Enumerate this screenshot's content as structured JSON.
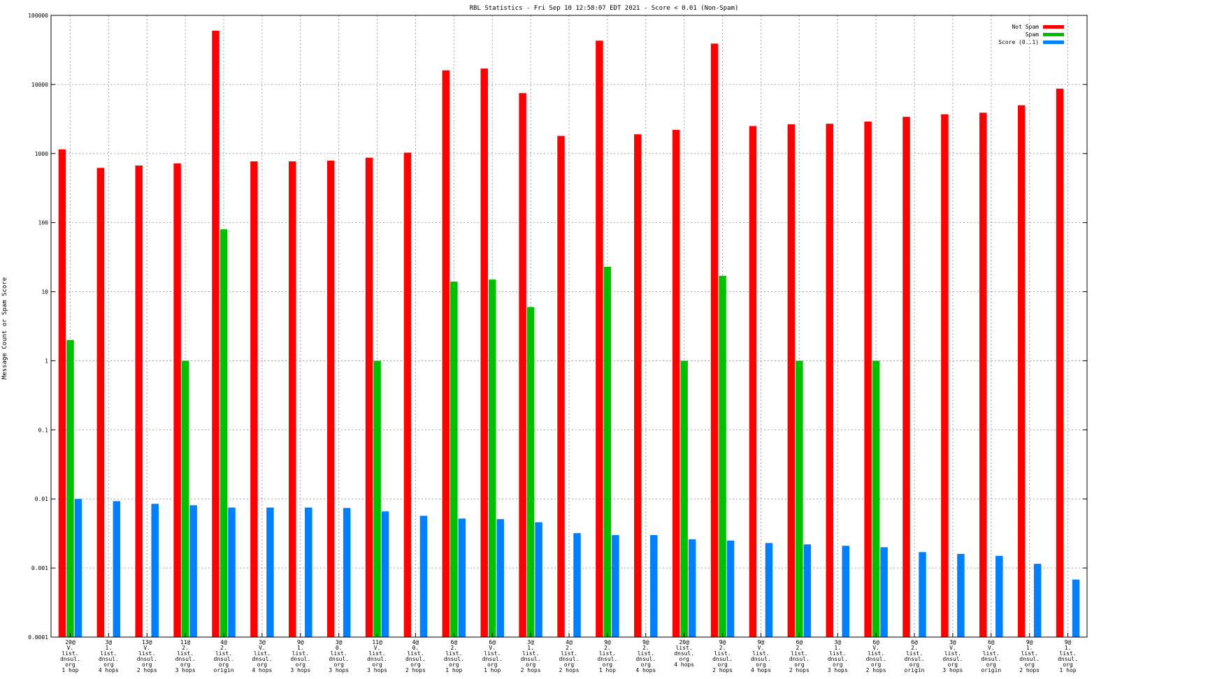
{
  "chart_data": {
    "type": "bar",
    "title": "RBL Statistics - Fri Sep 10 12:58:07 EDT 2021 - Score < 0.01 (Non-Spam)",
    "xlabel": "",
    "ylabel": "Message Count or Spam Score",
    "yscale": "log",
    "ylim": [
      0.0001,
      100000
    ],
    "yticks": [
      "0.0001",
      "0.001",
      "0.01",
      "0.1",
      "1",
      "10",
      "100",
      "1000",
      "10000",
      "100000"
    ],
    "grid": true,
    "legend_position": "top-right",
    "categories": [
      [
        "20@",
        "V.",
        "list.",
        "dnsul.",
        "org",
        "1 hop"
      ],
      [
        "3@",
        "1.",
        "list.",
        "dnsul.",
        "org",
        "4 hops"
      ],
      [
        "13@",
        "V.",
        "list.",
        "dnsul.",
        "org",
        "2 hops"
      ],
      [
        "11@",
        "2.",
        "list.",
        "dnsul.",
        "org",
        "3 hops"
      ],
      [
        "4@",
        "2.",
        "list.",
        "dnsul.",
        "org",
        "origin"
      ],
      [
        "3@",
        "V.",
        "list.",
        "dnsul.",
        "org",
        "4 hops"
      ],
      [
        "9@",
        "1.",
        "list.",
        "dnsul.",
        "org",
        "3 hops"
      ],
      [
        "3@",
        "0.",
        "list.",
        "dnsul.",
        "org",
        "3 hops"
      ],
      [
        "11@",
        "V.",
        "list.",
        "dnsul.",
        "org",
        "3 hops"
      ],
      [
        "4@",
        "0.",
        "list.",
        "dnsul.",
        "org",
        "2 hops"
      ],
      [
        "6@",
        "2.",
        "list.",
        "dnsul.",
        "org",
        "1 hop"
      ],
      [
        "6@",
        "V.",
        "list.",
        "dnsul.",
        "org",
        "1 hop"
      ],
      [
        "3@",
        "1.",
        "list.",
        "dnsul.",
        "org",
        "2 hops"
      ],
      [
        "4@",
        "2.",
        "list.",
        "dnsul.",
        "org",
        "2 hops"
      ],
      [
        "9@",
        "2.",
        "list.",
        "dnsul.",
        "org",
        "1 hop"
      ],
      [
        "9@",
        "2.",
        "list.",
        "dnsul.",
        "org",
        "4 hops"
      ],
      [
        "20@",
        "list.",
        "dnsul.",
        "org",
        "4 hops"
      ],
      [
        "9@",
        "2.",
        "list.",
        "dnsul.",
        "org",
        "2 hops"
      ],
      [
        "9@",
        "V.",
        "list.",
        "dnsul.",
        "org",
        "4 hops"
      ],
      [
        "6@",
        "2.",
        "list.",
        "dnsul.",
        "org",
        "2 hops"
      ],
      [
        "3@",
        "1.",
        "list.",
        "dnsul.",
        "org",
        "3 hops"
      ],
      [
        "6@",
        "V.",
        "list.",
        "dnsul.",
        "org",
        "2 hops"
      ],
      [
        "6@",
        "2.",
        "list.",
        "dnsul.",
        "org",
        "origin"
      ],
      [
        "3@",
        "V.",
        "list.",
        "dnsul.",
        "org",
        "3 hops"
      ],
      [
        "6@",
        "V.",
        "list.",
        "dnsul.",
        "org",
        "origin"
      ],
      [
        "9@",
        "1.",
        "list.",
        "dnsul.",
        "org",
        "2 hops"
      ],
      [
        "9@",
        "1.",
        "list.",
        "dnsul.",
        "org",
        "1 hop"
      ]
    ],
    "series": [
      {
        "name": "Not Spam",
        "color": "#ff0000",
        "values": [
          1150,
          620,
          670,
          720,
          60000,
          770,
          770,
          790,
          870,
          1030,
          16000,
          17000,
          7500,
          1800,
          43000,
          1900,
          2200,
          39000,
          2500,
          2650,
          2700,
          2900,
          3400,
          3700,
          3900,
          5000,
          8700
        ]
      },
      {
        "name": "Spam",
        "color": "#00c000",
        "values": [
          2,
          null,
          null,
          1,
          80,
          null,
          null,
          null,
          1,
          null,
          14,
          15,
          6,
          null,
          23,
          null,
          1,
          17,
          null,
          1,
          null,
          1,
          null,
          null,
          null,
          null,
          null
        ]
      },
      {
        "name": "Score (0..1)",
        "color": "#0080ff",
        "values": [
          0.01,
          0.0093,
          0.0085,
          0.0081,
          0.0075,
          0.0075,
          0.0075,
          0.0074,
          0.0066,
          0.0057,
          0.0052,
          0.0051,
          0.0046,
          0.0032,
          0.003,
          0.003,
          0.0026,
          0.0025,
          0.0023,
          0.0022,
          0.0021,
          0.002,
          0.0017,
          0.0016,
          0.0015,
          0.00115,
          0.00068
        ]
      }
    ]
  }
}
